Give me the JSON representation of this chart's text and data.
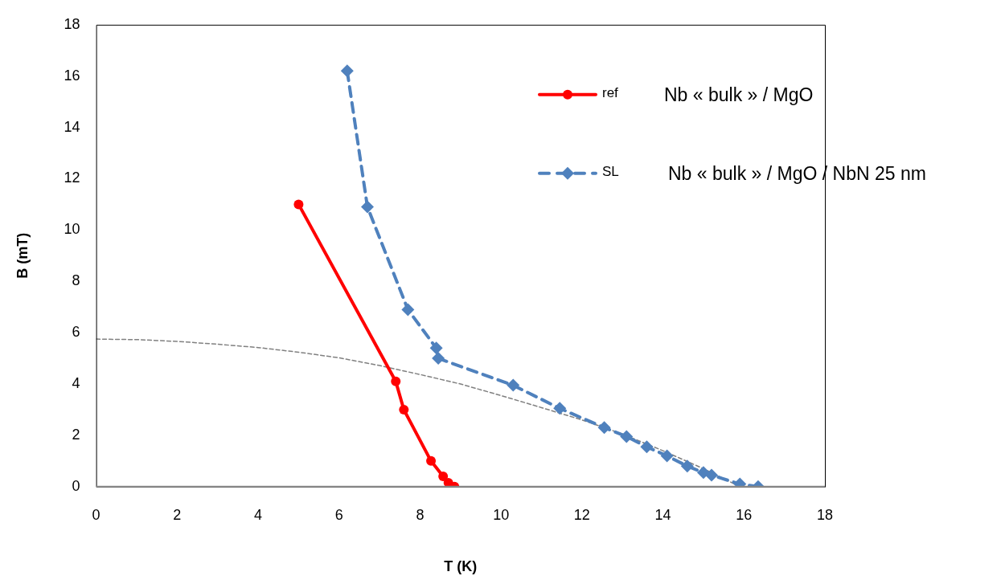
{
  "chart_data": {
    "type": "line",
    "xlabel": "T (K)",
    "ylabel": "B (mT)",
    "xlim": [
      0,
      18
    ],
    "xticks": [
      0,
      2,
      4,
      6,
      8,
      10,
      12,
      14,
      16,
      18
    ],
    "ylim": [
      0,
      18
    ],
    "yticks": [
      0,
      2,
      4,
      6,
      8,
      10,
      12,
      14,
      16,
      18
    ],
    "grid": false,
    "legend": "top right",
    "annotations": [
      "Nb « bulk » / MgO",
      "Nb « bulk » / MgO / NbN 25 nm"
    ],
    "series": [
      {
        "name": "ref",
        "color": "#ff0000",
        "marker": "circle",
        "line_style": "solid",
        "x": [
          5.0,
          7.4,
          7.6,
          8.27,
          8.57,
          8.7,
          8.85
        ],
        "values": [
          11.0,
          4.1,
          3.0,
          1.0,
          0.4,
          0.15,
          0
        ]
      },
      {
        "name": "SL",
        "color": "#4f81bd",
        "marker": "diamond",
        "line_style": "dashed",
        "x": [
          6.2,
          6.7,
          7.7,
          8.4,
          8.45,
          10.3,
          11.45,
          12.55,
          13.1,
          13.6,
          14.1,
          14.6,
          15.0,
          15.2,
          15.9,
          16.35
        ],
        "values": [
          16.2,
          10.9,
          6.9,
          5.4,
          5.0,
          3.95,
          3.05,
          2.3,
          1.95,
          1.55,
          1.2,
          0.8,
          0.55,
          0.45,
          0.1,
          0
        ]
      },
      {
        "type": "line",
        "color": "#808080",
        "marker": "none",
        "line_style": "dashed",
        "x": [
          0,
          1,
          2,
          3,
          4,
          5,
          6,
          7,
          8,
          9,
          10,
          11,
          12,
          13,
          14,
          15,
          15.9
        ],
        "values": [
          5.75,
          5.73,
          5.66,
          5.55,
          5.42,
          5.24,
          5.02,
          4.72,
          4.37,
          4.0,
          3.55,
          3.08,
          2.6,
          2.05,
          1.4,
          0.7,
          0
        ]
      }
    ]
  }
}
